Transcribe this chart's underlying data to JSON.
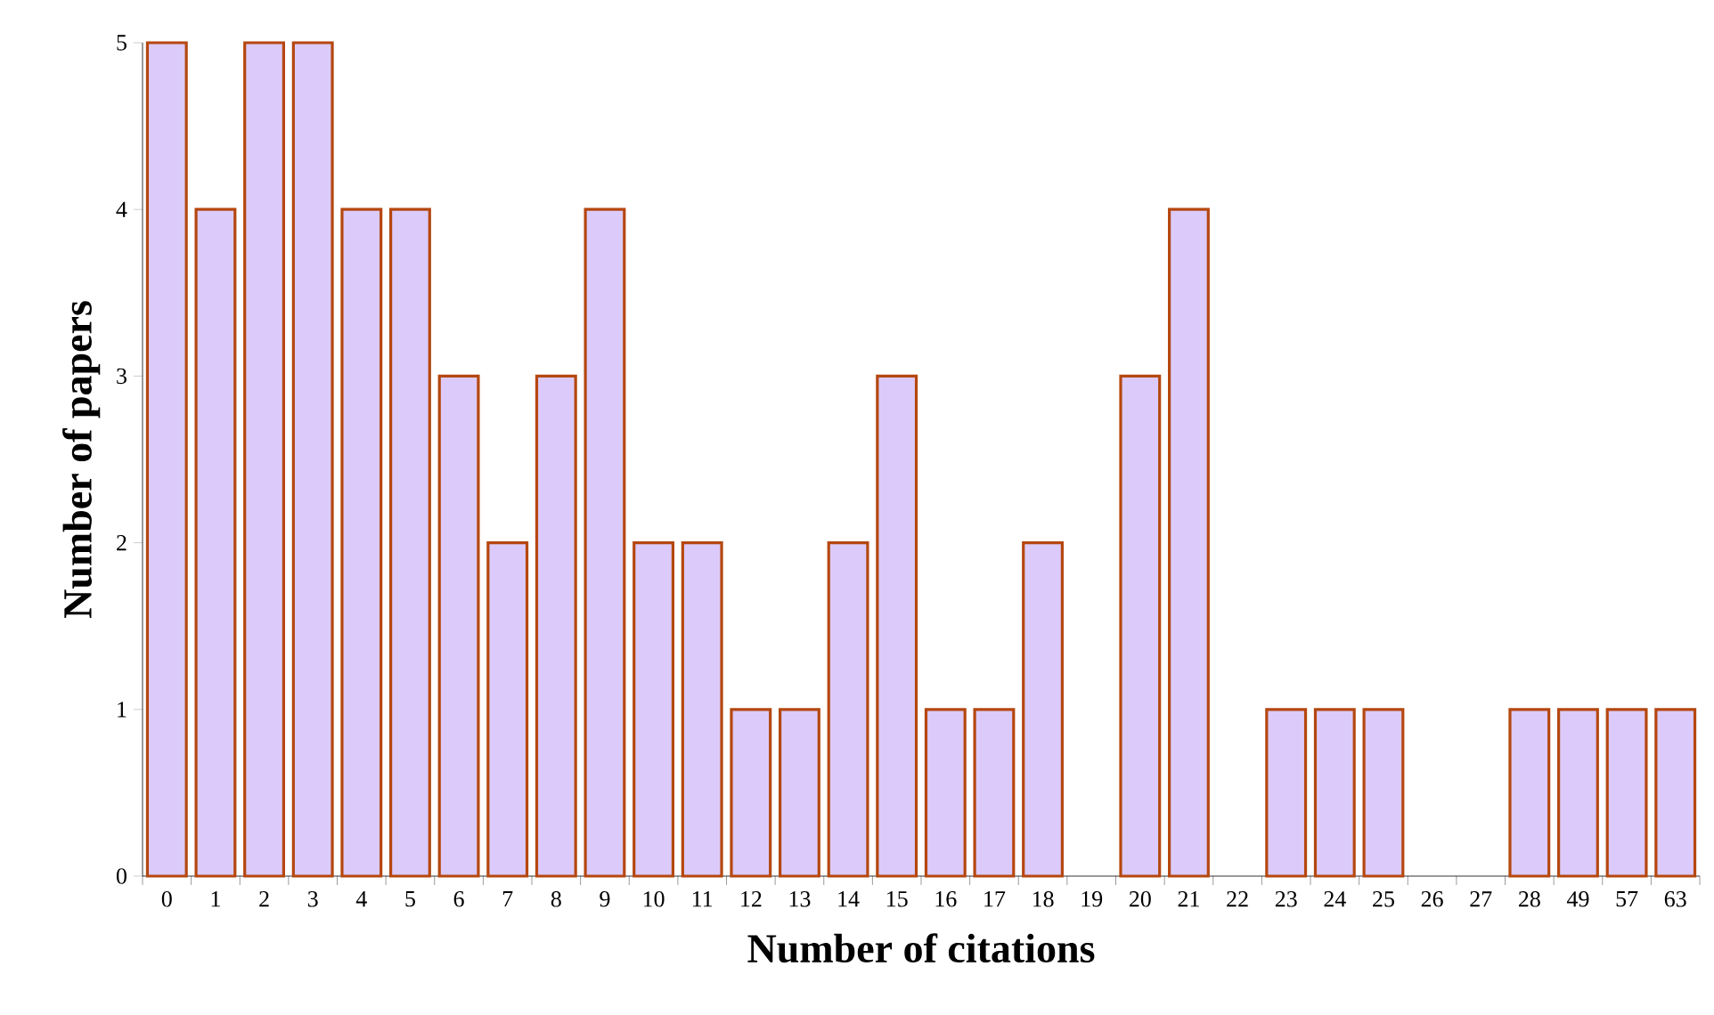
{
  "chart_data": {
    "type": "bar",
    "xlabel": "Number of citations",
    "ylabel": "Number of papers",
    "categories": [
      "0",
      "1",
      "2",
      "3",
      "4",
      "5",
      "6",
      "7",
      "8",
      "9",
      "10",
      "11",
      "12",
      "13",
      "14",
      "15",
      "16",
      "17",
      "18",
      "19",
      "20",
      "21",
      "22",
      "23",
      "24",
      "25",
      "26",
      "27",
      "28",
      "49",
      "57",
      "63"
    ],
    "values": [
      5,
      4,
      5,
      5,
      4,
      4,
      3,
      2,
      3,
      4,
      2,
      2,
      1,
      1,
      2,
      3,
      1,
      1,
      2,
      0,
      3,
      4,
      0,
      1,
      1,
      1,
      0,
      0,
      1,
      1,
      1,
      1
    ],
    "color": "#dccbfa",
    "ylim": [
      0,
      5
    ],
    "yticks": [
      0,
      1,
      2,
      3,
      4,
      5
    ],
    "grid": false
  }
}
